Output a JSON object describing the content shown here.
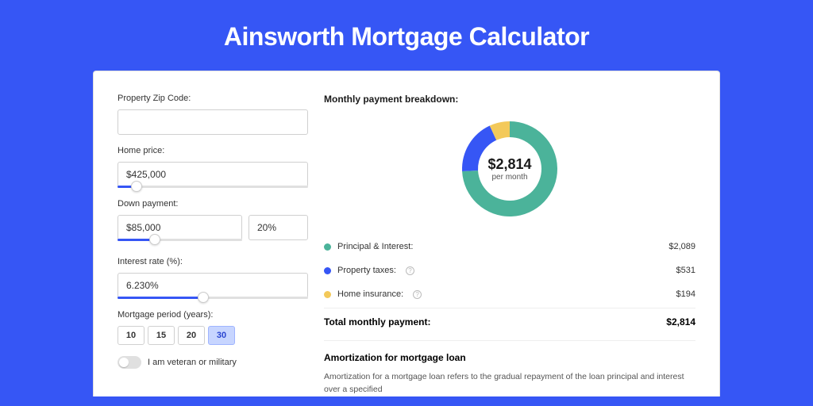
{
  "page": {
    "title": "Ainsworth Mortgage Calculator",
    "background_color": "#3656f5",
    "card_background": "#ffffff"
  },
  "form": {
    "zip": {
      "label": "Property Zip Code:",
      "value": ""
    },
    "home_price": {
      "label": "Home price:",
      "value": "$425,000",
      "slider_pct": 10
    },
    "down_payment": {
      "label": "Down payment:",
      "value": "$85,000",
      "pct_value": "20%",
      "slider_pct": 30
    },
    "interest_rate": {
      "label": "Interest rate (%):",
      "value": "6.230%",
      "slider_pct": 45
    },
    "mortgage_period": {
      "label": "Mortgage period (years):",
      "options": [
        "10",
        "15",
        "20",
        "30"
      ],
      "selected": "30"
    },
    "veteran": {
      "label": "I am veteran or military",
      "checked": false
    }
  },
  "breakdown": {
    "title": "Monthly payment breakdown:",
    "donut": {
      "total_label": "$2,814",
      "sub_label": "per month",
      "slices": [
        {
          "name": "Principal & Interest",
          "value": 2089,
          "color": "#4bb39a",
          "pct": 74.2
        },
        {
          "name": "Property taxes",
          "value": 531,
          "color": "#3656f5",
          "pct": 18.9
        },
        {
          "name": "Home insurance",
          "value": 194,
          "color": "#f3c95a",
          "pct": 6.9
        }
      ]
    },
    "items": [
      {
        "label": "Principal & Interest:",
        "value": "$2,089",
        "color": "#4bb39a",
        "info": false
      },
      {
        "label": "Property taxes:",
        "value": "$531",
        "color": "#3656f5",
        "info": true
      },
      {
        "label": "Home insurance:",
        "value": "$194",
        "color": "#f3c95a",
        "info": true
      }
    ],
    "total": {
      "label": "Total monthly payment:",
      "value": "$2,814"
    }
  },
  "amortization": {
    "title": "Amortization for mortgage loan",
    "text": "Amortization for a mortgage loan refers to the gradual repayment of the loan principal and interest over a specified"
  }
}
